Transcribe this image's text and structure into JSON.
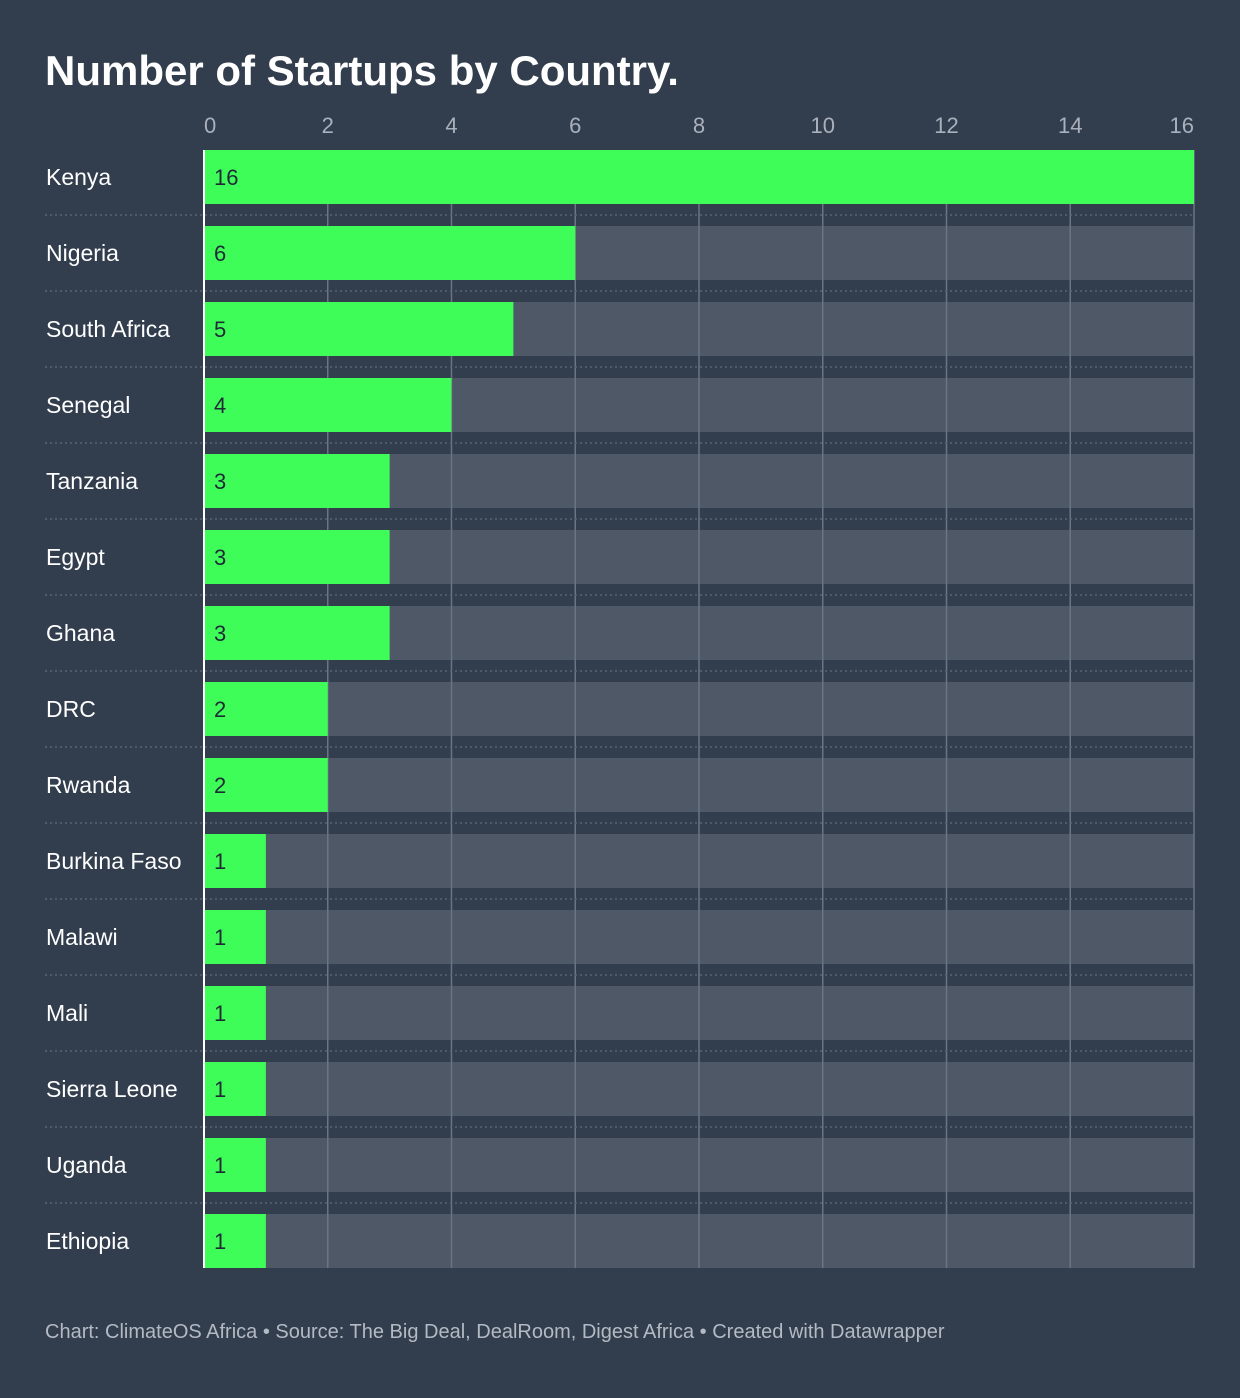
{
  "chart_data": {
    "type": "bar",
    "orientation": "horizontal",
    "title": "Number of Startups by Country.",
    "categories": [
      "Kenya",
      "Nigeria",
      "South Africa",
      "Senegal",
      "Tanzania",
      "Egypt",
      "Ghana",
      "DRC",
      "Rwanda",
      "Burkina Faso",
      "Malawi",
      "Mali",
      "Sierra Leone",
      "Uganda",
      "Ethiopia"
    ],
    "values": [
      16,
      6,
      5,
      4,
      3,
      3,
      3,
      2,
      2,
      1,
      1,
      1,
      1,
      1,
      1
    ],
    "xlim": [
      0,
      16
    ],
    "xticks": [
      0,
      2,
      4,
      6,
      8,
      10,
      12,
      14,
      16
    ],
    "xaxis_position": "top",
    "grid": true,
    "data_labels": true,
    "footer": "Chart: ClimateOS Africa • Source: The Big Deal, DealRoom, Digest Africa • Created with Datawrapper",
    "colors": {
      "background": "#323d4d",
      "bar": "#3ffd58",
      "track": "#4e5866",
      "grid": "#6b7482",
      "separator": "#5a6472"
    }
  }
}
